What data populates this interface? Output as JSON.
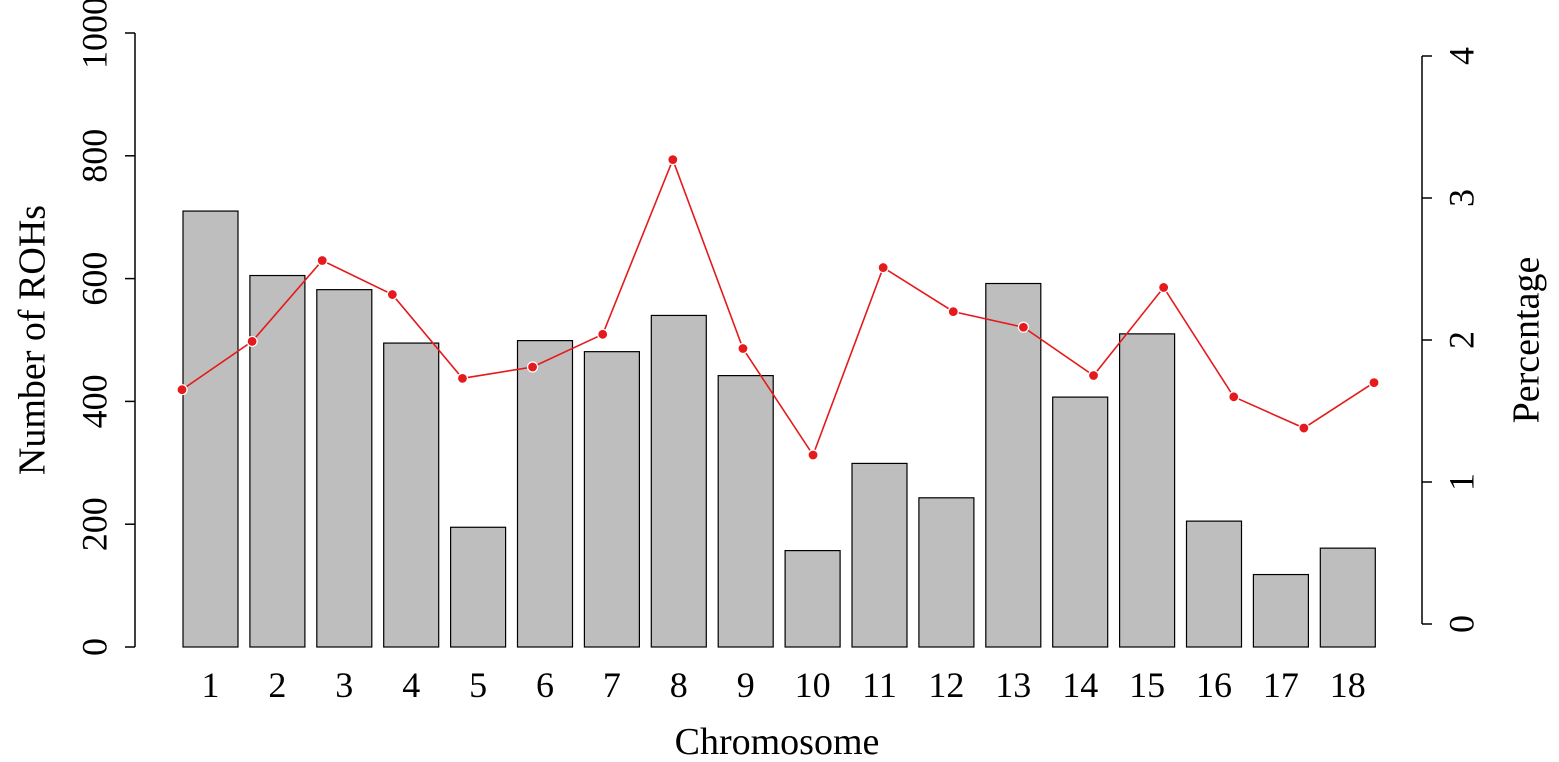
{
  "chart_data": {
    "type": "bar",
    "xlabel": "Chromosome",
    "ylabel": "Number of ROHs",
    "y2label": "Percentage",
    "categories": [
      "1",
      "2",
      "3",
      "4",
      "5",
      "6",
      "7",
      "8",
      "9",
      "10",
      "11",
      "12",
      "13",
      "14",
      "15",
      "16",
      "17",
      "18"
    ],
    "series": [
      {
        "type": "bar",
        "axis": "left",
        "values": [
          710,
          605,
          582,
          495,
          195,
          499,
          481,
          540,
          442,
          157,
          299,
          243,
          592,
          407,
          510,
          205,
          118,
          161
        ]
      },
      {
        "type": "line",
        "axis": "right",
        "color": "#e41a1c",
        "values": [
          1.65,
          1.99,
          2.56,
          2.32,
          1.73,
          1.81,
          2.04,
          3.27,
          1.94,
          1.19,
          2.51,
          2.2,
          2.09,
          1.75,
          2.37,
          1.6,
          1.38,
          1.7
        ]
      }
    ],
    "ylim": [
      0,
      1000
    ],
    "yticks": [
      "0",
      "200",
      "400",
      "600",
      "800",
      "1000"
    ],
    "y2lim": [
      0,
      4
    ],
    "y2ticks": [
      "0",
      "1",
      "2",
      "3",
      "4"
    ],
    "grid": false,
    "bar_color": "#bebebe"
  }
}
